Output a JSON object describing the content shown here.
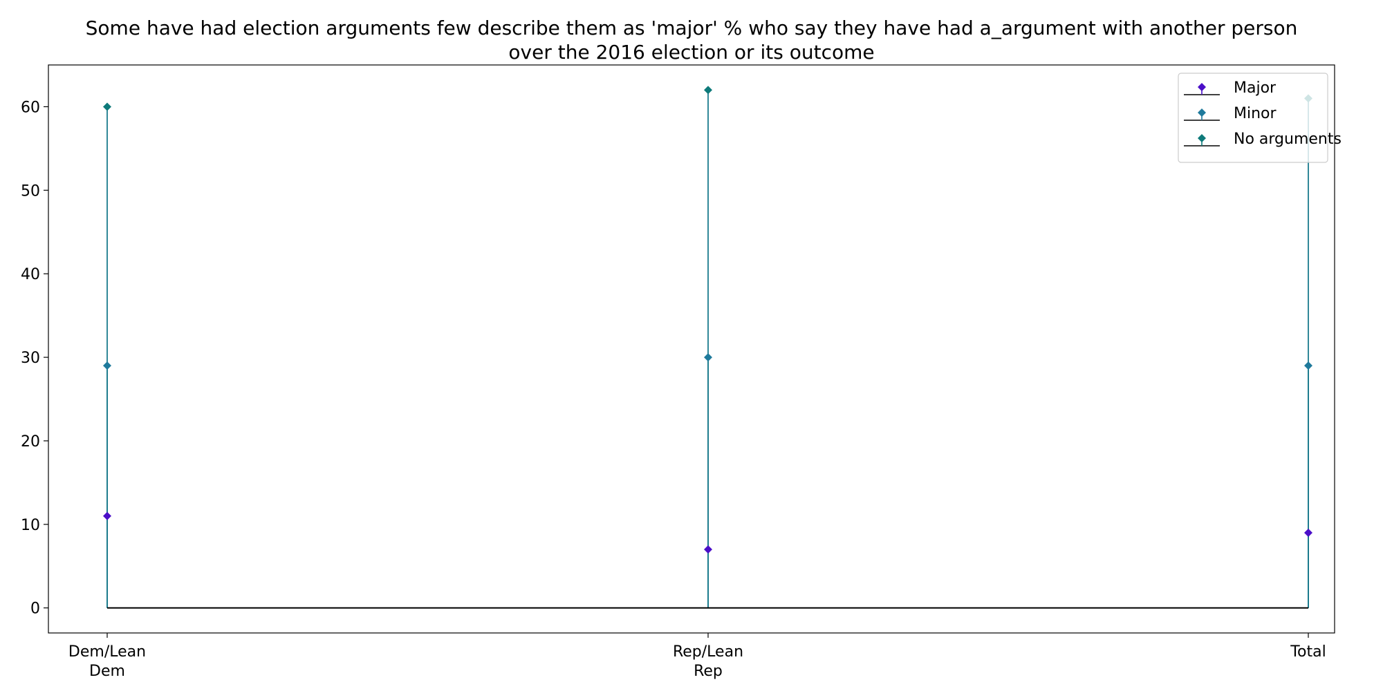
{
  "chart_data": {
    "type": "stem",
    "title": [
      "Some have had election arguments few describe them as 'major' % who say they have had a_argument with another person",
      "over the 2016 election or its outcome"
    ],
    "categories": [
      [
        "Dem/Lean",
        "Dem"
      ],
      [
        "Rep/Lean",
        "Rep"
      ],
      [
        "Total"
      ]
    ],
    "series": [
      {
        "name": "Major",
        "values": [
          11,
          7,
          9
        ],
        "color": "#4b0fc8"
      },
      {
        "name": "Minor",
        "values": [
          29,
          30,
          29
        ],
        "color": "#1f7a9c"
      },
      {
        "name": "No arguments",
        "values": [
          60,
          62,
          61
        ],
        "color": "#0e7a7a"
      }
    ],
    "ylim": [
      -3,
      65
    ],
    "yticks": [
      0,
      10,
      20,
      30,
      40,
      50,
      60
    ],
    "xlabel": "",
    "ylabel": "",
    "grid": false,
    "legend": "top-right",
    "colors": {
      "axis": "#000000",
      "baseline": "#000000",
      "stem": "#1a7a8c"
    }
  }
}
